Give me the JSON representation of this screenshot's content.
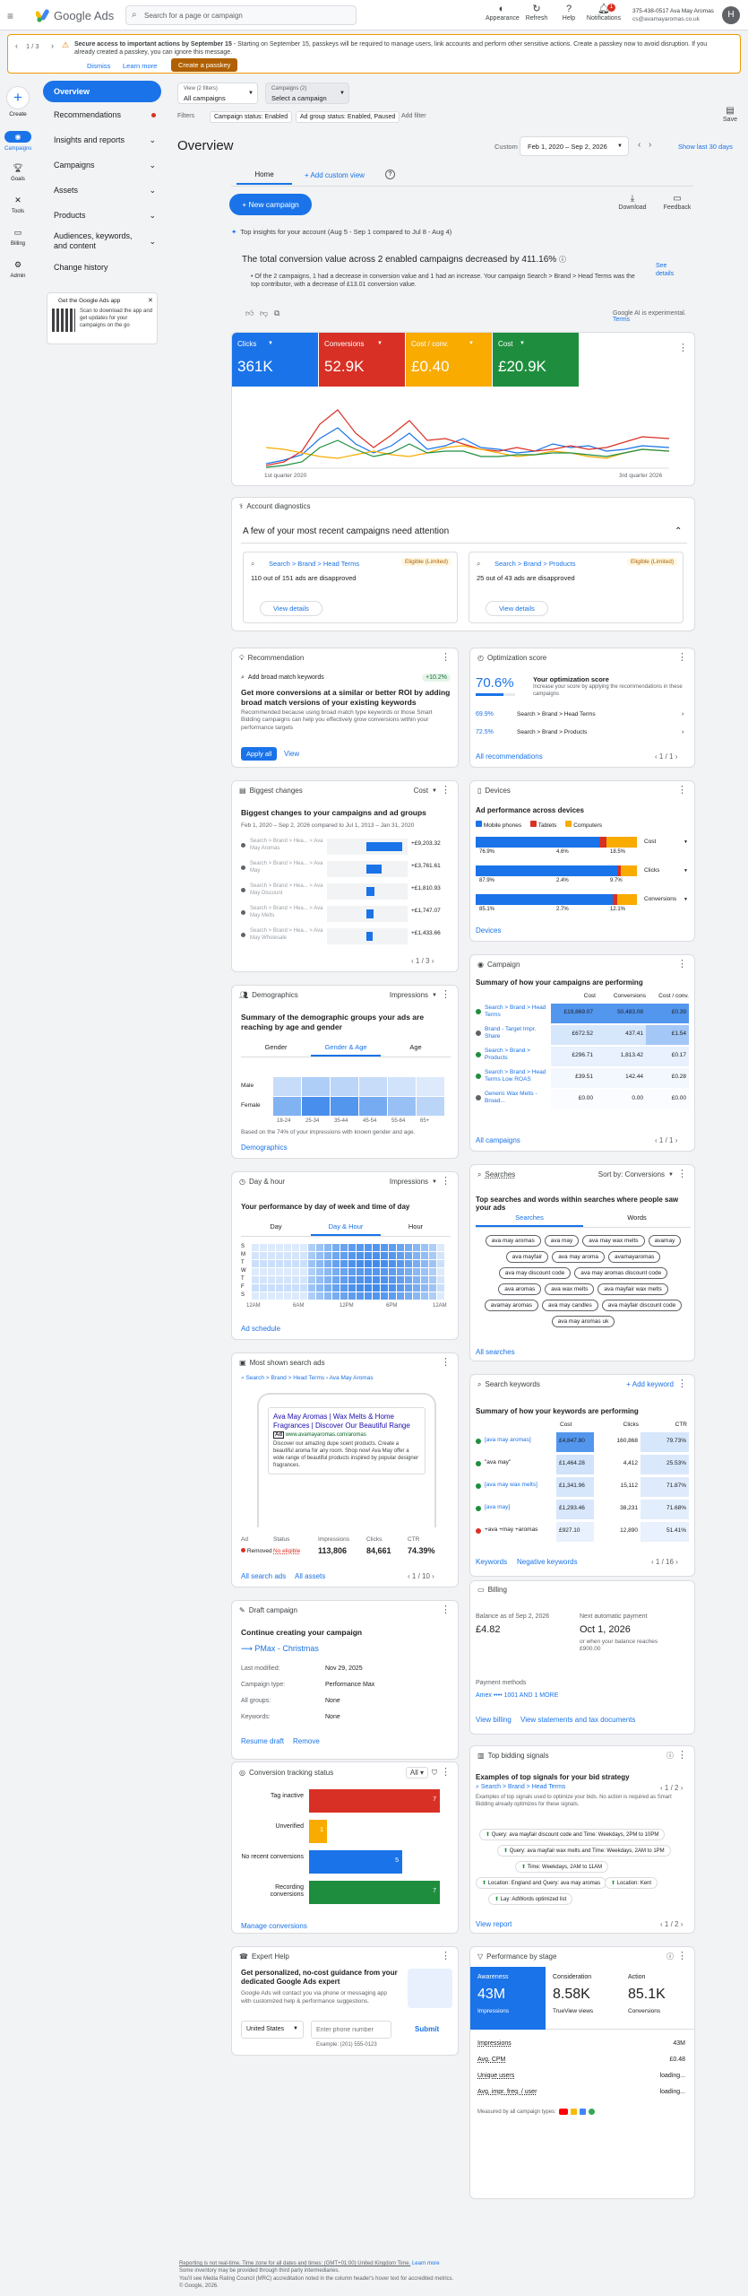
{
  "topbar": {
    "logo": "Google Ads",
    "search_placeholder": "Search for a page or campaign",
    "icons": [
      "Appearance",
      "Refresh",
      "Help",
      "Notifications"
    ],
    "notif_count": "1",
    "account_id": "375-438-0517 Ava May Aromas",
    "account_email": "cs@avamayaromas.co.uk",
    "avatar": "H"
  },
  "banner": {
    "counter": "1 / 3",
    "title": "Secure access to important actions by September 15",
    "text": " - Starting on September 15, passkeys will be required to manage users, link accounts and perform other sensitive actions. Create a passkey now to avoid disruption. If you already created a passkey, you can ignore this message.",
    "dismiss": "Dismiss",
    "learn": "Learn more",
    "create": "Create a passkey"
  },
  "rail": {
    "create": "Create",
    "items": [
      "Campaigns",
      "Goals",
      "Tools",
      "Billing",
      "Admin"
    ]
  },
  "sidebar": {
    "overview": "Overview",
    "items": [
      "Recommendations",
      "Insights and reports",
      "Campaigns",
      "Assets",
      "Products",
      "Audiences, keywords, and content",
      "Change history"
    ],
    "app_promo_title": "Get the Google Ads app",
    "app_promo_text": "Scan to download the app and get updates for your campaigns on the go"
  },
  "filters": {
    "view_label": "View (2 filters)",
    "view_value": "All campaigns",
    "campaigns_label": "Campaigns (2)",
    "campaigns_value": "Select a campaign",
    "filters_label": "Filters",
    "chip1": "Campaign status: Enabled",
    "chip2": "Ad group status: Enabled, Paused",
    "add": "Add filter",
    "save": "Save"
  },
  "header": {
    "title": "Overview",
    "range_label": "Custom",
    "range": "Feb 1, 2020 – Sep 2, 2026",
    "show_last": "Show last 30 days",
    "tab_home": "Home",
    "add_view": "Add custom view",
    "new_campaign": "New campaign",
    "download": "Download",
    "feedback": "Feedback"
  },
  "insight": {
    "pre": "Top insights for your account (Aug 5 - Sep 1 compared to Jul 8 - Aug 4)",
    "headline": "The total conversion value across 2 enabled campaigns decreased by ",
    "pct": "411.16",
    "see": "See details",
    "bullet": "Of the 2 campaigns, 1 had a decrease in conversion value and 1 had an increase. Your campaign Search > Brand > Head Terms was the top contributor, with a decrease of £13.01 conversion value.",
    "experimental": "Google AI is experimental.",
    "terms": "Terms"
  },
  "metrics": [
    {
      "name": "Clicks",
      "value": "361K",
      "color": "#1a73e8"
    },
    {
      "name": "Conversions",
      "value": "52.9K",
      "color": "#d93025"
    },
    {
      "name": "Cost / conv.",
      "value": "£0.40",
      "color": "#f9ab00"
    },
    {
      "name": "Cost",
      "value": "£20.9K",
      "color": "#1e8e3e"
    }
  ],
  "metrics_chart": {
    "start": "1st quarter 2020",
    "end": "3rd quarter 2026"
  },
  "diag": {
    "label": "Account diagnostics",
    "title": "A few of your most recent campaigns need attention",
    "cards": [
      {
        "campaign": "Search > Brand > Head Terms",
        "status": "Eligible (Limited)",
        "text": "110 out of 151 ads are disapproved",
        "btn": "View details"
      },
      {
        "campaign": "Search > Brand > Products",
        "status": "Eligible (Limited)",
        "text": "25 out of 43 ads are disapproved",
        "btn": "View details"
      }
    ]
  },
  "reco": {
    "label": "Recommendation",
    "item": "Add broad match keywords",
    "badge": "+10.2%",
    "title": "Get more conversions at a similar or better ROI by adding broad match versions of your existing keywords",
    "text": "Recommended because using broad match type keywords or those Smart Bidding campaigns can help you effectively grow conversions within your performance targets",
    "apply": "Apply all",
    "view": "View"
  },
  "optscore": {
    "label": "Optimization score",
    "score": "70.6%",
    "title": "Your optimization score",
    "desc": "Increase your score by applying the recommendations in these campaigns",
    "rows": [
      {
        "pct": "69.9%",
        "name": "Search > Brand > Head Terms"
      },
      {
        "pct": "72.5%",
        "name": "Search > Brand > Products"
      }
    ],
    "all": "All recommendations",
    "page": "1 / 1"
  },
  "biggest": {
    "label": "Biggest changes",
    "filter": "Cost",
    "title": "Biggest changes to your campaigns and ad groups",
    "sub": "Feb 1, 2020 – Sep 2, 2026 compared to Jul 1, 2013 – Jan 31, 2020",
    "rows": [
      {
        "name": "Search > Brand > Hea... > Ava May Aromas",
        "value": "+£9,203.32",
        "fill": 1.0
      },
      {
        "name": "Search > Brand > Hea... > Ava May",
        "value": "+£3,761.61",
        "fill": 0.42
      },
      {
        "name": "Search > Brand > Hea... > Ava May Discount",
        "value": "+£1,810.93",
        "fill": 0.22
      },
      {
        "name": "Search > Brand > Hea... > Ava May Melts",
        "value": "+£1,747.07",
        "fill": 0.21
      },
      {
        "name": "Search > Brand > Hea... > Ava May Wholesale",
        "value": "+£1,433.66",
        "fill": 0.18
      }
    ],
    "page": "1 / 3"
  },
  "devices": {
    "label": "Devices",
    "title": "Ad performance across devices",
    "legend": [
      "Mobile phones",
      "Tablets",
      "Computers"
    ],
    "rows": [
      {
        "metric": "Cost",
        "m": "76.9%",
        "t": "4.6%",
        "c": "18.5%",
        "mv": 0.769,
        "tv": 0.046
      },
      {
        "metric": "Clicks",
        "m": "87.9%",
        "t": "2.4%",
        "c": "9.7%",
        "mv": 0.879,
        "tv": 0.024
      },
      {
        "metric": "Conversions",
        "m": "85.1%",
        "t": "2.7%",
        "c": "12.1%",
        "mv": 0.851,
        "tv": 0.027
      }
    ],
    "link": "Devices"
  },
  "demo": {
    "label": "Demographics",
    "filter": "Impressions",
    "title": "Summary of the demographic groups your ads are reaching by age and gender",
    "tabs": [
      "Gender",
      "Gender & Age",
      "Age"
    ],
    "rows": [
      "Male",
      "Female"
    ],
    "ages": [
      "18-24",
      "25-34",
      "35-44",
      "45-54",
      "55-64",
      "65+"
    ],
    "note": "Based on the 74% of your impressions with known gender and age.",
    "link": "Demographics",
    "intensity": [
      [
        0.25,
        0.35,
        0.3,
        0.25,
        0.2,
        0.15
      ],
      [
        0.55,
        0.8,
        0.75,
        0.6,
        0.45,
        0.3
      ]
    ]
  },
  "campaign": {
    "label": "Campaign",
    "title": "Summary of how your campaigns are performing",
    "cols": [
      "Cost",
      "Conversions",
      "Cost / conv."
    ],
    "rows": [
      {
        "name": "Search > Brand > Head Terms",
        "cost": "£19,869.07",
        "conv": "50,483.08",
        "cpc": "£0.39",
        "color": "#1e8e3e"
      },
      {
        "name": "Brand - Target Impr. Share",
        "cost": "£672.52",
        "conv": "437.41",
        "cpc": "£1.54",
        "color": "#5f6368"
      },
      {
        "name": "Search > Brand > Products",
        "cost": "£296.71",
        "conv": "1,813.42",
        "cpc": "£0.17",
        "color": "#1e8e3e"
      },
      {
        "name": "Search > Brand > Head Terms Low ROAS",
        "cost": "£39.51",
        "conv": "142.44",
        "cpc": "£0.28",
        "color": "#1e8e3e"
      },
      {
        "name": "Generic Wax Melts - Broad...",
        "cost": "£0.00",
        "conv": "0.00",
        "cpc": "£0.00",
        "color": "#5f6368"
      }
    ],
    "link": "All campaigns",
    "page": "1 / 1"
  },
  "dayhour": {
    "label": "Day & hour",
    "filter": "Impressions",
    "title": "Your performance by day of week and time of day",
    "tabs": [
      "Day",
      "Day & Hour",
      "Hour"
    ],
    "days": [
      "S",
      "M",
      "T",
      "W",
      "T",
      "F",
      "S"
    ],
    "hours": [
      "12AM",
      "6AM",
      "12PM",
      "6PM",
      "12AM"
    ],
    "link": "Ad schedule"
  },
  "searches": {
    "label": "Searches",
    "sort": "Sort by: Conversions",
    "title": "Top searches and words within searches where people saw your ads",
    "tabs": [
      "Searches",
      "Words"
    ],
    "chips": [
      "ava may aromas",
      "ava may",
      "ava may wax melts",
      "avamay",
      "ava mayfair",
      "ava may aroma",
      "avamayaromas",
      "ava may discount code",
      "ava may aromas discount code",
      "ava aromas",
      "ava wax melts",
      "ava mayfair wax melts",
      "avamay aromas",
      "ava may candles",
      "ava mayfair discount code",
      "ava may aromas uk"
    ],
    "link": "All searches"
  },
  "mostshown": {
    "label": "Most shown search ads",
    "breadcrumb": "Search > Brand > Head Terms",
    "adgroup": "Ava May Aromas",
    "ad_title": "Ava May Aromas | Wax Melts & Home Fragrances | Discover Our Beautiful Range",
    "ad_label": "Ad",
    "ad_url": "www.avamayaromas.com/aromas",
    "ad_desc": "Discover our amazing dupe scent products. Create a beautiful aroma for any room. Shop now! Ava May offer a wide range of beautiful products inspired by popular designer fragrances.",
    "cols": [
      "Ad",
      "Status",
      "Impressions",
      "Clicks",
      "CTR"
    ],
    "status": "Removed",
    "status2": "No eligible",
    "impr": "113,806",
    "clicks": "84,661",
    "ctr": "74.39%",
    "link1": "All search ads",
    "link2": "All assets",
    "page": "1 / 10"
  },
  "keywords": {
    "label": "Search keywords",
    "add": "Add keyword",
    "title": "Summary of how your keywords are performing",
    "cols": [
      "Cost",
      "Clicks",
      "CTR"
    ],
    "rows": [
      {
        "kw": "[ava may aromas]",
        "cost": "£4,847.80",
        "clicks": "160,868",
        "ctr": "79.73%",
        "color": "#1e8e3e"
      },
      {
        "kw": "\"ava may\"",
        "cost": "£1,464.28",
        "clicks": "4,412",
        "ctr": "25.53%",
        "color": "#1e8e3e"
      },
      {
        "kw": "[ava may wax melts]",
        "cost": "£1,341.96",
        "clicks": "15,112",
        "ctr": "71.87%",
        "color": "#1e8e3e"
      },
      {
        "kw": "[ava may]",
        "cost": "£1,293.46",
        "clicks": "38,231",
        "ctr": "71.68%",
        "color": "#1e8e3e"
      },
      {
        "kw": "+ava +may +aromas",
        "cost": "£927.10",
        "clicks": "12,890",
        "ctr": "51.41%",
        "color": "#d93025"
      }
    ],
    "link1": "Keywords",
    "link2": "Negative keywords",
    "page": "1 / 16"
  },
  "draft": {
    "label": "Draft campaign",
    "title": "Continue creating your campaign",
    "name": "PMax - Christmas",
    "rows": [
      {
        "k": "Last modified:",
        "v": "Nov 29, 2025"
      },
      {
        "k": "Campaign type:",
        "v": "Performance Max"
      },
      {
        "k": "All groups:",
        "v": "None"
      },
      {
        "k": "Keywords:",
        "v": "None"
      }
    ],
    "resume": "Resume draft",
    "remove": "Remove"
  },
  "billing": {
    "label": "Billing",
    "balance_label": "Balance as of Sep 2, 2026",
    "balance": "£4.82",
    "next_label": "Next automatic payment",
    "next_date": "Oct 1, 2026",
    "next_note": "or when your balance reaches £900.00",
    "pm_label": "Payment methods",
    "pm": "Amex •••• 1001 AND 1 MORE",
    "view": "View billing",
    "statements": "View statements and tax documents"
  },
  "conv": {
    "label": "Conversion tracking status",
    "filter": "All",
    "rows": [
      {
        "name": "Tag inactive",
        "value": "7",
        "color": "#d93025",
        "fill": 1.0
      },
      {
        "name": "Unverified",
        "value": "1",
        "color": "#f9ab00",
        "fill": 0.14
      },
      {
        "name": "No recent conversions",
        "value": "5",
        "color": "#1a73e8",
        "fill": 0.71
      },
      {
        "name": "Recording conversions",
        "value": "7",
        "color": "#1e8e3e",
        "fill": 1.0
      }
    ],
    "link": "Manage conversions"
  },
  "signals": {
    "label": "Top bidding signals",
    "title": "Examples of top signals for your bid strategy",
    "campaign": "Search > Brand > Head Terms",
    "desc": "Examples of top signals used to optimize your bids. No action is required as Smart Bidding already optimizes for these signals.",
    "page": "1 / 2",
    "items": [
      "Query: ava mayfair discount code and Time: Weekdays, 2PM to 10PM",
      "Query: ava mayfair wax melts and Time: Weekdays, 2AM to 1PM",
      "Time: Weekdays, 2AM to 11AM",
      "Location: England and Query: ava may aromas",
      "Location: Kent",
      "Lay: AdWords optimized list"
    ],
    "link": "View report",
    "page2": "1 / 2"
  },
  "expert": {
    "label": "Expert Help",
    "title": "Get personalized, no-cost guidance from your dedicated Google Ads expert",
    "text": "Google Ads will contact you via phone or messaging app with customized help & performance suggestions.",
    "country": "United States",
    "phone_placeholder": "Enter phone number",
    "submit": "Submit",
    "example": "Example: (201) 555-0123"
  },
  "stage": {
    "label": "Performance by stage",
    "cols": [
      {
        "name": "Awareness",
        "value": "43M",
        "sub": "Impressions"
      },
      {
        "name": "Consideration",
        "value": "8.58K",
        "sub": "TrueView views"
      },
      {
        "name": "Action",
        "value": "85.1K",
        "sub": "Conversions"
      }
    ],
    "rows": [
      {
        "k": "Impressions",
        "v": "43M"
      },
      {
        "k": "Avg. CPM",
        "v": "£0.48"
      },
      {
        "k": "Unique users",
        "v": "loading..."
      },
      {
        "k": "Avg. impr. freq. / user",
        "v": "loading..."
      }
    ],
    "measured": "Measured by all campaign types:"
  },
  "footer": {
    "l1": "Reporting is not real-time. Time zone for all dates and times: (GMT+01:00) United Kingdom Time.",
    "learn": "Learn more",
    "l2": "Some inventory may be provided through third party intermediaries.",
    "l3": "You'll see Media Rating Council (MRC) accreditation noted in the column header's hover text for accredited metrics.",
    "copy": "© Google, 2026."
  }
}
